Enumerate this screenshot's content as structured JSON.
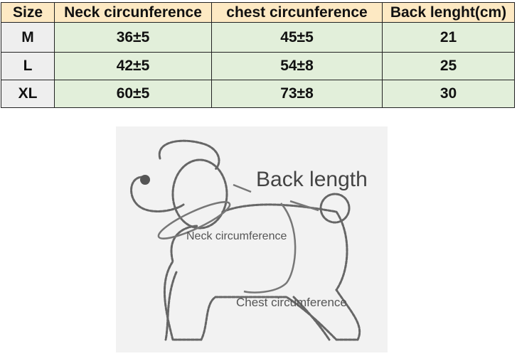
{
  "table": {
    "headers": [
      "Size",
      "Neck circunference",
      "chest circunference",
      "Back lenght(cm)"
    ],
    "rows": [
      [
        "M",
        "36±5",
        "45±5",
        "21"
      ],
      [
        "L",
        "42±5",
        "54±8",
        "25"
      ],
      [
        "XL",
        "60±5",
        "73±8",
        "30"
      ]
    ]
  },
  "figure": {
    "back_label": "Back length",
    "neck_label": "Neck circumference",
    "chest_label": "Chest circumference"
  },
  "colors": {
    "header_bg": "#fde9c3",
    "data_bg": "#e2efda",
    "size_bg": "#eeeeee"
  }
}
